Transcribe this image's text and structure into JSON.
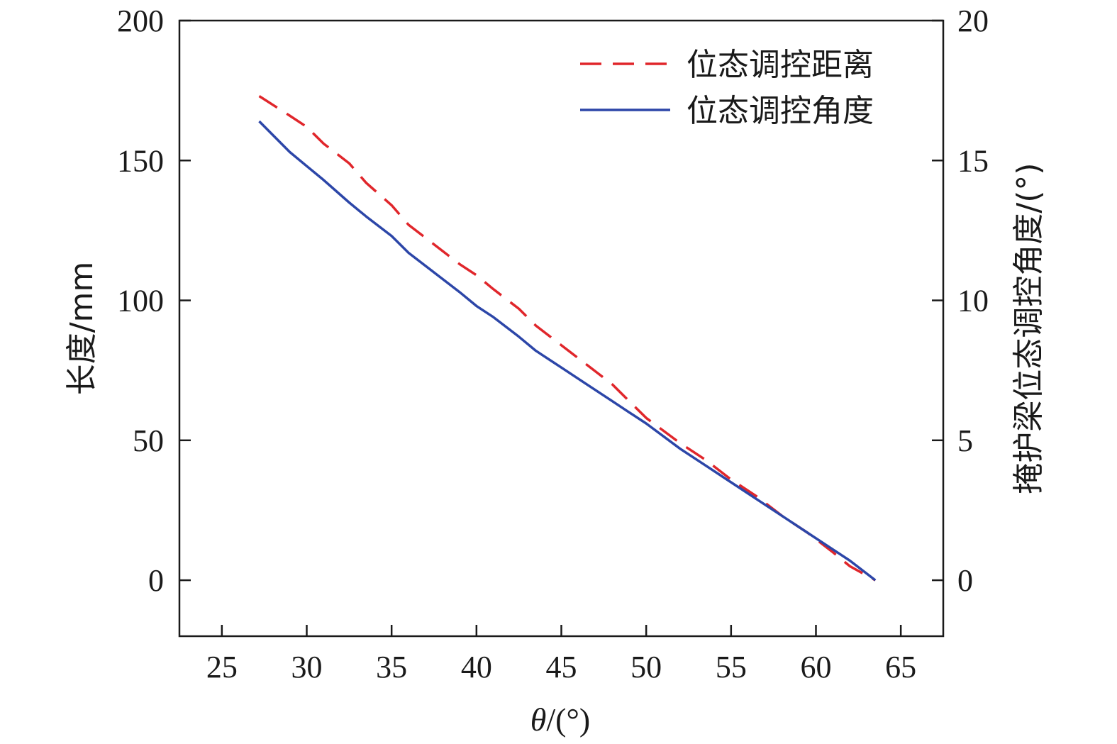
{
  "chart_data": {
    "type": "line",
    "x": [
      27.2,
      29.0,
      30.0,
      31.0,
      32.5,
      33.5,
      35.0,
      36.0,
      37.5,
      39.0,
      40.0,
      41.0,
      42.5,
      43.5,
      45.0,
      46.5,
      48.0,
      49.0,
      50.0,
      52.0,
      53.5,
      55.0,
      56.5,
      58.0,
      59.5,
      61.0,
      62.0,
      63.5
    ],
    "x_label_italic": "θ",
    "x_label_rest": "/(°)",
    "y_left_label": "长度/mm",
    "y_right_label": "掩护梁位态调控角度/(°)",
    "xlim": [
      22.5,
      67.5
    ],
    "ylim_left": [
      -20,
      200
    ],
    "ylim_right": [
      -2,
      20
    ],
    "x_ticks": [
      25,
      30,
      35,
      40,
      45,
      50,
      55,
      60,
      65
    ],
    "y_left_ticks": [
      0,
      50,
      100,
      150,
      200
    ],
    "y_right_ticks": [
      0,
      5,
      10,
      15,
      20
    ],
    "legend_position": "top-right",
    "series": [
      {
        "name": "位态调控距离",
        "axis": "left",
        "style": "dashed",
        "color": "#e0262b",
        "values": [
          173,
          166,
          162,
          156,
          149,
          142,
          134,
          127,
          120,
          113,
          109,
          104,
          97,
          91,
          84,
          77,
          70,
          64,
          58,
          49,
          43,
          36,
          30,
          23,
          17,
          10,
          5,
          0
        ]
      },
      {
        "name": "位态调控角度",
        "axis": "right",
        "style": "solid",
        "color": "#2c46a8",
        "values": [
          16.4,
          15.3,
          14.8,
          14.3,
          13.5,
          13.0,
          12.3,
          11.7,
          11.0,
          10.3,
          9.8,
          9.4,
          8.7,
          8.2,
          7.6,
          7.0,
          6.4,
          6.0,
          5.6,
          4.7,
          4.1,
          3.5,
          2.9,
          2.3,
          1.7,
          1.1,
          0.7,
          0.0
        ]
      }
    ]
  }
}
